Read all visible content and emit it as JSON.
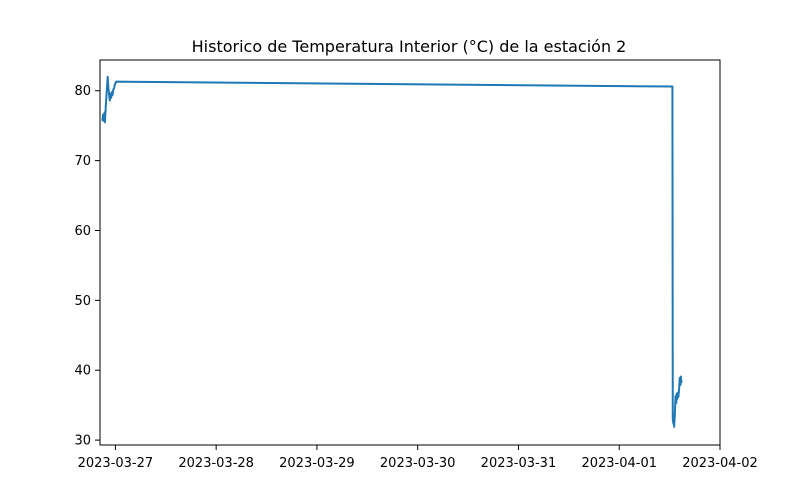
{
  "chart_data": {
    "type": "line",
    "title": "Historico de Temperatura Interior (°C) de la estación 2",
    "xlabel": "",
    "ylabel": "",
    "xlim": [
      "2023-03-26 20:20",
      "2023-04-02 00:00"
    ],
    "ylim": [
      29.3,
      84.4
    ],
    "x_ticks": [
      "2023-03-27",
      "2023-03-28",
      "2023-03-29",
      "2023-03-30",
      "2023-03-31",
      "2023-04-01",
      "2023-04-02"
    ],
    "y_ticks": [
      30,
      40,
      50,
      60,
      70,
      80
    ],
    "grid": false,
    "legend": "none",
    "series": [
      {
        "color": "#1f77b4",
        "points": [
          [
            "2023-03-26 20:55",
            75.8
          ],
          [
            "2023-03-26 21:05",
            76.6
          ],
          [
            "2023-03-26 21:10",
            75.7
          ],
          [
            "2023-03-26 21:15",
            76.4
          ],
          [
            "2023-03-26 21:20",
            75.9
          ],
          [
            "2023-03-26 21:25",
            76.9
          ],
          [
            "2023-03-26 21:30",
            75.5
          ],
          [
            "2023-03-26 21:40",
            77.3
          ],
          [
            "2023-03-26 21:55",
            79.8
          ],
          [
            "2023-03-26 22:05",
            81.2
          ],
          [
            "2023-03-26 22:10",
            82.0
          ],
          [
            "2023-03-26 22:20",
            80.4
          ],
          [
            "2023-03-26 22:35",
            79.0
          ],
          [
            "2023-03-26 22:40",
            78.6
          ],
          [
            "2023-03-26 22:50",
            79.6
          ],
          [
            "2023-03-26 23:00",
            79.0
          ],
          [
            "2023-03-26 23:10",
            79.8
          ],
          [
            "2023-03-26 23:20",
            79.4
          ],
          [
            "2023-03-26 23:30",
            80.2
          ],
          [
            "2023-03-26 23:40",
            80.3
          ],
          [
            "2023-03-26 23:50",
            80.8
          ],
          [
            "2023-03-27 00:10",
            81.3
          ],
          [
            "2023-04-01 12:40",
            80.6
          ],
          [
            "2023-04-01 12:45",
            33.0
          ],
          [
            "2023-04-01 12:55",
            32.3
          ],
          [
            "2023-04-01 13:00",
            32.9
          ],
          [
            "2023-04-01 13:05",
            31.9
          ],
          [
            "2023-04-01 13:15",
            33.8
          ],
          [
            "2023-04-01 13:25",
            36.3
          ],
          [
            "2023-04-01 13:35",
            35.3
          ],
          [
            "2023-04-01 13:40",
            36.6
          ],
          [
            "2023-04-01 13:50",
            35.9
          ],
          [
            "2023-04-01 13:55",
            36.8
          ],
          [
            "2023-04-01 14:05",
            36.2
          ],
          [
            "2023-04-01 14:15",
            37.2
          ],
          [
            "2023-04-01 14:25",
            38.9
          ],
          [
            "2023-04-01 14:35",
            37.9
          ],
          [
            "2023-04-01 14:40",
            39.1
          ],
          [
            "2023-04-01 14:50",
            38.3
          ]
        ]
      }
    ]
  }
}
